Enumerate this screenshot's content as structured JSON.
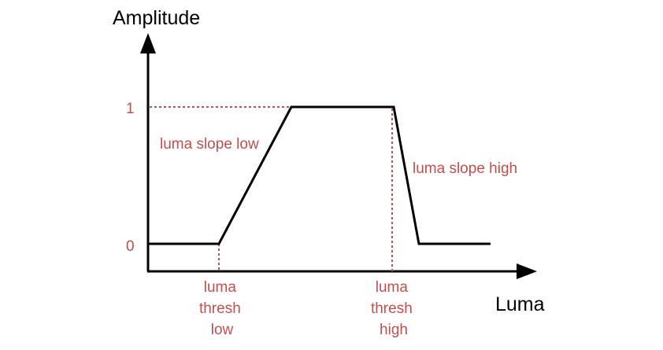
{
  "diagram": {
    "y_axis_title": "Amplitude",
    "x_axis_title": "Luma",
    "y_tick_high": "1",
    "y_tick_low": "0",
    "slope_low_label": "luma slope low",
    "slope_high_label": "luma slope high",
    "thresh_low_lines": [
      "luma",
      "thresh",
      "low"
    ],
    "thresh_high_lines": [
      "luma",
      "thresh",
      "high"
    ]
  },
  "colors": {
    "axis": "#000000",
    "curve": "#000000",
    "guide": "#c0504d",
    "label_red": "#c0504d"
  }
}
